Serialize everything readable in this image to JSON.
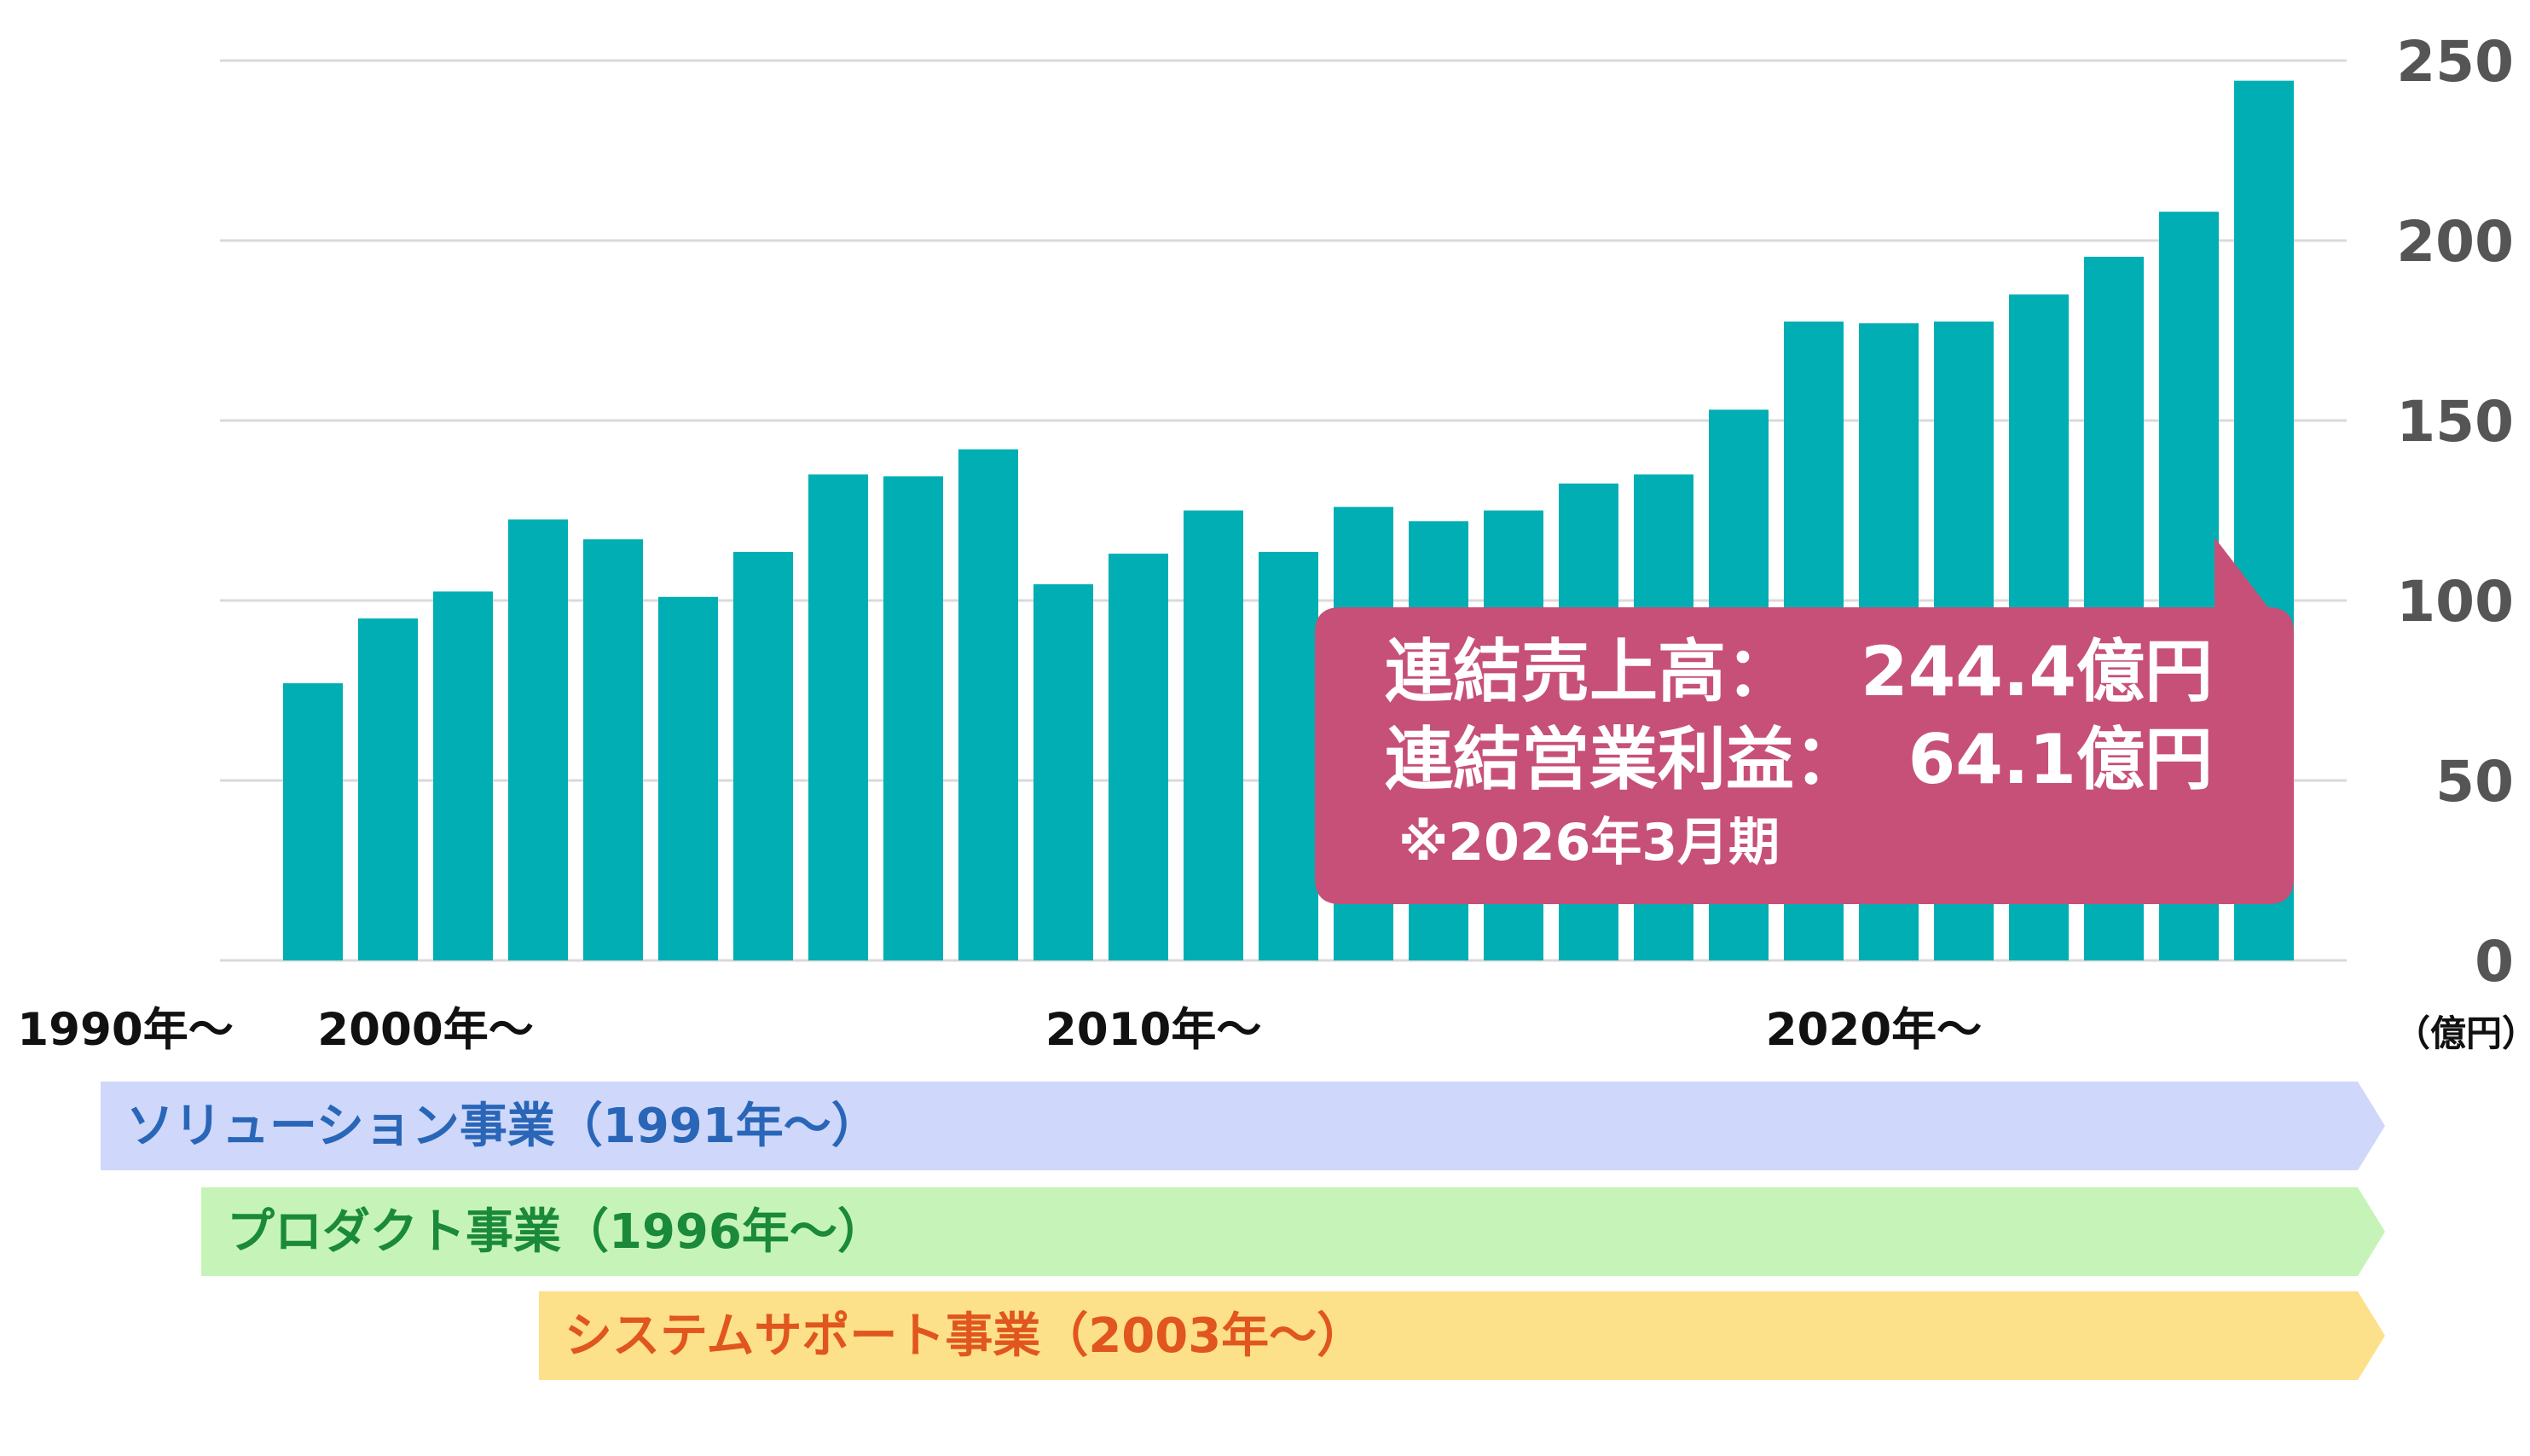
{
  "chart_data": {
    "type": "bar",
    "unit": "（億円）",
    "ylim": [
      0,
      250
    ],
    "yticks": [
      "0",
      "50",
      "100",
      "150",
      "200",
      "250"
    ],
    "grid": true,
    "bar_color": "#00AEB3",
    "values": [
      77,
      95,
      102.5,
      122.5,
      117,
      101,
      113.5,
      135,
      134.5,
      142,
      104.5,
      113,
      125,
      113.5,
      126,
      122,
      125,
      132.5,
      135,
      153,
      177.5,
      177,
      177.5,
      185,
      195.5,
      208,
      244.4
    ],
    "xtick_labels": [
      {
        "label": "1990年～",
        "bar_index": -2.5
      },
      {
        "label": "2000年～",
        "bar_index": 1.5
      },
      {
        "label": "2010年～",
        "bar_index": 11.2
      },
      {
        "label": "2020年～",
        "bar_index": 20.8
      }
    ]
  },
  "callout": {
    "color": "#C75078",
    "line1_label": "連結売上高：",
    "line1_value": "244.4億円",
    "line2_label": "連結営業利益：",
    "line2_value": "64.1億円",
    "note": "※2026年3月期"
  },
  "segments": [
    {
      "label": "ソリューション事業（1991年～）",
      "fill": "#CFD8FA",
      "text_color": "#2A66B8"
    },
    {
      "label": "プロダクト事業（1996年～）",
      "fill": "#C6F4B8",
      "text_color": "#1A8A3A"
    },
    {
      "label": "システムサポート事業（2003年～）",
      "fill": "#FDE08A",
      "text_color": "#E0561E"
    }
  ]
}
